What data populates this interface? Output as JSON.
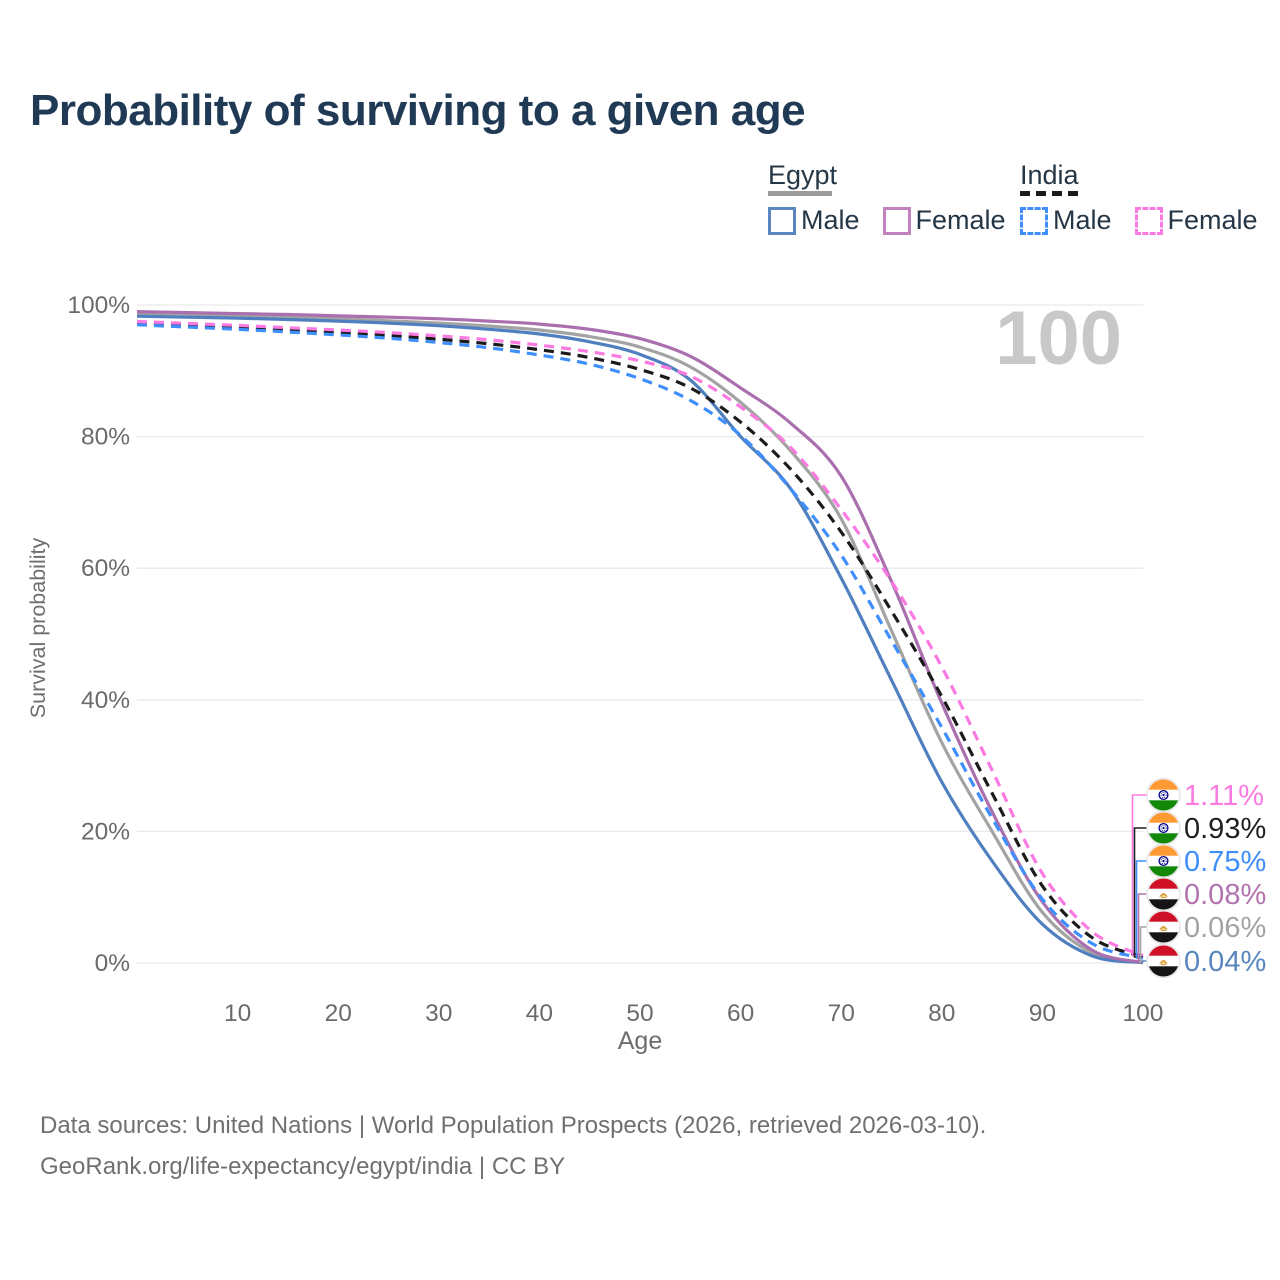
{
  "title": "Probability of surviving to a given age",
  "legend": {
    "groups": [
      {
        "country": "Egypt",
        "line_style": "solid",
        "rule_color": "#9c9c9c",
        "items": [
          {
            "label": "Male",
            "swatch_color": "#5a87c0"
          },
          {
            "label": "Female",
            "swatch_color": "#c182bd"
          }
        ]
      },
      {
        "country": "India",
        "line_style": "dashed",
        "rule_color": "#1b1b1b",
        "items": [
          {
            "label": "Male",
            "swatch_color": "#3e8efb"
          },
          {
            "label": "Female",
            "swatch_color": "#fb7ae1"
          }
        ]
      }
    ]
  },
  "chart_data": {
    "type": "line",
    "title": "Probability of surviving to a given age",
    "xlabel": "Age",
    "ylabel": "Survival probability",
    "xlim": [
      0,
      100
    ],
    "ylim": [
      0,
      100
    ],
    "grid": "horizontal",
    "legend_position": "top-right",
    "watermark": "100",
    "x_ticks": [
      10,
      20,
      30,
      40,
      50,
      60,
      70,
      80,
      90,
      100
    ],
    "y_ticks": [
      {
        "value": 100,
        "label": "100%"
      },
      {
        "value": 80,
        "label": "80%"
      },
      {
        "value": 60,
        "label": "60%"
      },
      {
        "value": 40,
        "label": "40%"
      },
      {
        "value": 20,
        "label": "20%"
      },
      {
        "value": 0,
        "label": "0%"
      }
    ],
    "x": [
      0,
      5,
      10,
      15,
      20,
      25,
      30,
      35,
      40,
      45,
      50,
      55,
      60,
      65,
      70,
      75,
      80,
      85,
      90,
      95,
      100
    ],
    "series": [
      {
        "name": "Egypt All",
        "country": "Egypt",
        "sex": "All",
        "color": "#a3a3a3",
        "line_style": "solid",
        "values": [
          98.65,
          98.5,
          98.35,
          98.15,
          97.9,
          97.6,
          97.25,
          96.8,
          96.2,
          95.2,
          93.6,
          90.6,
          85.2,
          77.8,
          67.5,
          50.5,
          33.5,
          20.0,
          7.7,
          1.5,
          0.06
        ]
      },
      {
        "name": "Egypt Male",
        "country": "Egypt",
        "sex": "Male",
        "color": "#4f7fbe",
        "line_style": "solid",
        "values": [
          98.3,
          98.15,
          98.0,
          97.8,
          97.55,
          97.25,
          96.85,
          96.3,
          95.6,
          94.4,
          92.5,
          88.6,
          80.0,
          72.0,
          58.5,
          43.0,
          27.5,
          15.5,
          5.9,
          1.05,
          0.04
        ]
      },
      {
        "name": "Egypt Female",
        "country": "Egypt",
        "sex": "Female",
        "color": "#aa6fae",
        "line_style": "solid",
        "values": [
          99.0,
          98.85,
          98.7,
          98.55,
          98.35,
          98.15,
          97.9,
          97.55,
          97.1,
          96.3,
          94.9,
          92.2,
          87.4,
          82.0,
          74.0,
          58.0,
          39.5,
          23.0,
          9.3,
          1.9,
          0.08
        ]
      },
      {
        "name": "India All",
        "country": "India",
        "sex": "All",
        "color": "#1b1b1b",
        "line_style": "dashed",
        "values": [
          97.25,
          96.9,
          96.6,
          96.2,
          95.8,
          95.35,
          94.8,
          94.1,
          93.2,
          92.0,
          90.2,
          87.4,
          82.2,
          75.0,
          65.5,
          53.5,
          40.5,
          25.8,
          11.7,
          3.8,
          0.93
        ]
      },
      {
        "name": "India Male",
        "country": "India",
        "sex": "Male",
        "color": "#3e8efb",
        "line_style": "dashed",
        "values": [
          97.0,
          96.65,
          96.3,
          95.9,
          95.45,
          94.95,
          94.3,
          93.5,
          92.4,
          91.0,
          88.8,
          85.5,
          80.2,
          72.0,
          62.0,
          49.0,
          35.8,
          22.0,
          9.7,
          2.9,
          0.75
        ]
      },
      {
        "name": "India Female",
        "country": "India",
        "sex": "Female",
        "color": "#fb7ae1",
        "line_style": "dashed",
        "values": [
          97.5,
          97.2,
          96.9,
          96.55,
          96.2,
          95.8,
          95.3,
          94.7,
          93.9,
          92.9,
          91.5,
          89.2,
          84.5,
          78.3,
          68.9,
          58.0,
          45.0,
          29.3,
          13.6,
          4.7,
          1.11
        ]
      }
    ],
    "end_labels": [
      {
        "series": "India Female",
        "flag": "india-flag-icon",
        "text": "1.11%",
        "value": 1.11,
        "color": "#fb7ae1"
      },
      {
        "series": "India All",
        "flag": "india-flag-icon",
        "text": "0.93%",
        "value": 0.93,
        "color": "#1f1f1f"
      },
      {
        "series": "India Male",
        "flag": "india-flag-icon",
        "text": "0.75%",
        "value": 0.75,
        "color": "#3e8efb"
      },
      {
        "series": "Egypt Female",
        "flag": "egypt-flag-icon",
        "text": "0.08%",
        "value": 0.08,
        "color": "#b273ae"
      },
      {
        "series": "Egypt All",
        "flag": "egypt-flag-icon",
        "text": "0.06%",
        "value": 0.06,
        "color": "#a3a3a3"
      },
      {
        "series": "Egypt Male",
        "flag": "egypt-flag-icon",
        "text": "0.04%",
        "value": 0.04,
        "color": "#5a86bf"
      }
    ]
  },
  "footer": {
    "line1": "Data sources: United Nations | World Population Prospects (2026, retrieved 2026-03-10).",
    "line2": "GeoRank.org/life-expectancy/egypt/india | CC BY"
  }
}
